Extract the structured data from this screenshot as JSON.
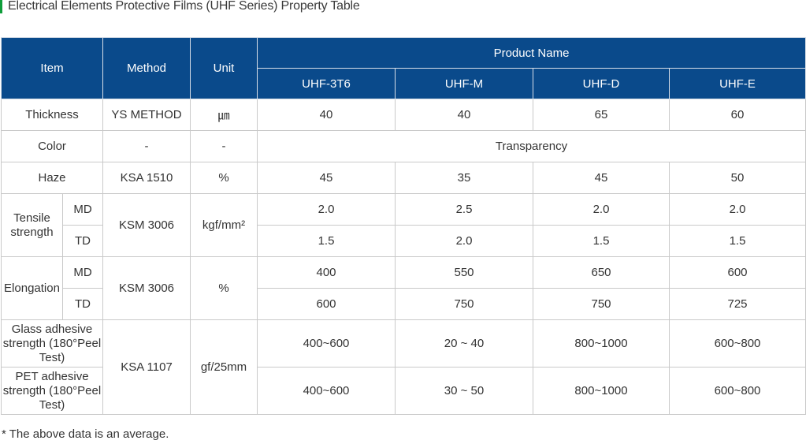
{
  "title": "Electrical Elements Protective Films (UHF Series) Property Table",
  "header": {
    "item": "Item",
    "method": "Method",
    "unit": "Unit",
    "product_name": "Product Name",
    "products": [
      "UHF-3T6",
      "UHF-M",
      "UHF-D",
      "UHF-E"
    ]
  },
  "rows": {
    "thickness": {
      "item": "Thickness",
      "method": "YS METHOD",
      "unit": "㎛",
      "values": [
        "40",
        "40",
        "65",
        "60"
      ]
    },
    "color": {
      "item": "Color",
      "method": "-",
      "unit": "-",
      "value": "Transparency"
    },
    "haze": {
      "item": "Haze",
      "method": "KSA 1510",
      "unit": "%",
      "values": [
        "45",
        "35",
        "45",
        "50"
      ]
    },
    "tensile": {
      "item": "Tensile strength",
      "method": "KSM 3006",
      "unit": "kgf/mm²",
      "md": {
        "label": "MD",
        "values": [
          "2.0",
          "2.5",
          "2.0",
          "2.0"
        ]
      },
      "td": {
        "label": "TD",
        "values": [
          "1.5",
          "2.0",
          "1.5",
          "1.5"
        ]
      }
    },
    "elongation": {
      "item": "Elongation",
      "method": "KSM 3006",
      "unit": "%",
      "md": {
        "label": "MD",
        "values": [
          "400",
          "550",
          "650",
          "600"
        ]
      },
      "td": {
        "label": "TD",
        "values": [
          "600",
          "750",
          "750",
          "725"
        ]
      }
    },
    "adhesive": {
      "method": "KSA 1107",
      "unit": "gf/25mm",
      "glass": {
        "item": "Glass adhesive strength (180°Peel Test)",
        "values": [
          "400~600",
          "20 ~ 40",
          "800~1000",
          "600~800"
        ]
      },
      "pet": {
        "item": "PET adhesive strength (180°Peel Test)",
        "values": [
          "400~600",
          "30 ~ 50",
          "800~1000",
          "600~800"
        ]
      }
    }
  },
  "note": "* The above data is an average.",
  "colors": {
    "header_bg": "#0a4a8b",
    "accent_bar": "#0f9d3a",
    "border": "#c9c9c9"
  }
}
